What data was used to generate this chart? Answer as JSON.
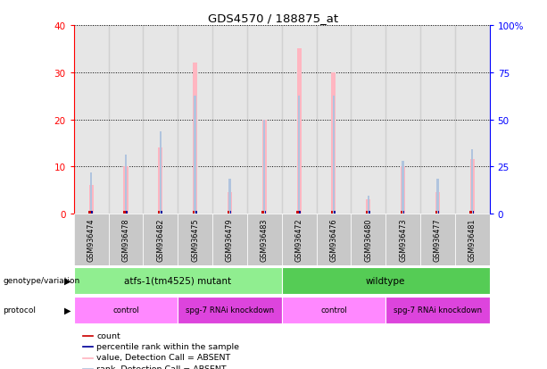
{
  "title": "GDS4570 / 188875_at",
  "samples": [
    "GSM936474",
    "GSM936478",
    "GSM936482",
    "GSM936475",
    "GSM936479",
    "GSM936483",
    "GSM936472",
    "GSM936476",
    "GSM936480",
    "GSM936473",
    "GSM936477",
    "GSM936481"
  ],
  "absent_value": [
    6,
    10,
    14,
    32,
    4.5,
    20,
    35,
    30,
    3,
    10,
    4.5,
    11.5
  ],
  "absent_rank": [
    8.75,
    12.5,
    17.5,
    25,
    7.5,
    20,
    25,
    25,
    3.75,
    11.25,
    7.5,
    13.75
  ],
  "count_values": [
    0.5,
    0.5,
    0.5,
    0.5,
    0.5,
    0.5,
    0.5,
    0.5,
    0.5,
    0.5,
    0.5,
    0.5
  ],
  "rank_values": [
    0.5,
    0.5,
    0.5,
    0.5,
    0.5,
    0.5,
    0.5,
    0.5,
    0.5,
    0.5,
    0.5,
    0.5
  ],
  "ylim_left": [
    0,
    40
  ],
  "ylim_right": [
    0,
    100
  ],
  "yticks_left": [
    0,
    10,
    20,
    30,
    40
  ],
  "yticks_right": [
    0,
    25,
    50,
    75,
    100
  ],
  "ytick_labels_right": [
    "0",
    "25",
    "50",
    "75",
    "100%"
  ],
  "genotype_groups": [
    {
      "label": "atfs-1(tm4525) mutant",
      "start": 0,
      "end": 6,
      "color": "#90EE90"
    },
    {
      "label": "wildtype",
      "start": 6,
      "end": 12,
      "color": "#55CC55"
    }
  ],
  "protocol_groups": [
    {
      "label": "control",
      "start": 0,
      "end": 3,
      "color": "#FF88FF"
    },
    {
      "label": "spg-7 RNAi knockdown",
      "start": 3,
      "end": 6,
      "color": "#DD44DD"
    },
    {
      "label": "control",
      "start": 6,
      "end": 9,
      "color": "#FF88FF"
    },
    {
      "label": "spg-7 RNAi knockdown",
      "start": 9,
      "end": 12,
      "color": "#DD44DD"
    }
  ],
  "absent_bar_color": "#FFB6C1",
  "absent_rank_color": "#B0C4DE",
  "count_color": "#CC0000",
  "rank_color": "#000099",
  "sample_bg_color": "#C8C8C8",
  "legend_items": [
    {
      "label": "count",
      "color": "#CC0000"
    },
    {
      "label": "percentile rank within the sample",
      "color": "#000099"
    },
    {
      "label": "value, Detection Call = ABSENT",
      "color": "#FFB6C1"
    },
    {
      "label": "rank, Detection Call = ABSENT",
      "color": "#B0C4DE"
    }
  ]
}
